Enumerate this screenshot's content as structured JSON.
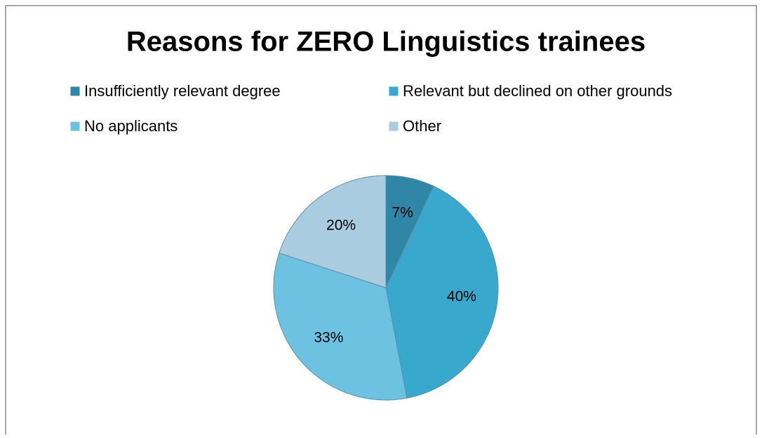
{
  "chart_data": {
    "type": "pie",
    "title": "Reasons for ZERO Linguistics trainees",
    "categories": [
      "Insufficiently relevant degree",
      "Relevant but declined on other grounds",
      "No applicants",
      "Other"
    ],
    "values": [
      7,
      40,
      33,
      20
    ],
    "value_labels": [
      "7%",
      "40%",
      "33%",
      "20%"
    ],
    "colors": [
      "#2f86a6",
      "#38a9cc",
      "#6dc2e2",
      "#a9cce0"
    ],
    "legend": "top"
  }
}
